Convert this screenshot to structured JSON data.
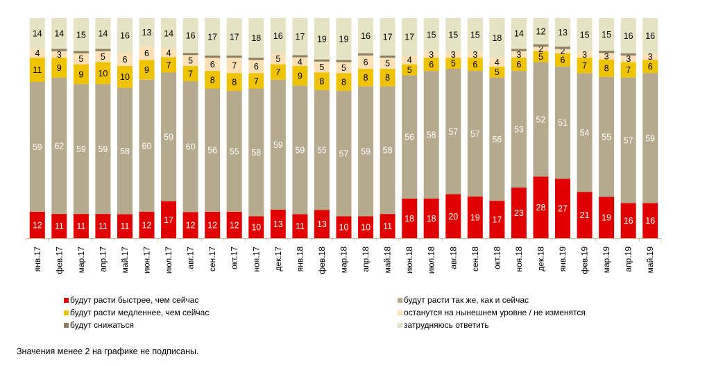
{
  "chart_data": {
    "type": "bar",
    "stacked": true,
    "orientation": "vertical",
    "percent_stack": true,
    "title": "",
    "xlabel": "",
    "ylabel": "",
    "ylim": [
      0,
      100
    ],
    "grid": false,
    "legend_position": "bottom",
    "categories": [
      "янв.17",
      "фев.17",
      "мар.17",
      "апр.17",
      "май.17",
      "июн.17",
      "июл.17",
      "авг.17",
      "сен.17",
      "окт.17",
      "ноя.17",
      "дек.17",
      "янв.18",
      "фев.18",
      "мар.18",
      "апр.18",
      "май.18",
      "июн.18",
      "июл.18",
      "авг.18",
      "сен.18",
      "окт.18",
      "ноя.18",
      "дек.18",
      "янв.19",
      "фев.19",
      "мар.19",
      "апр.19",
      "май.19"
    ],
    "series": [
      {
        "name": "будут расти быстрее, чем сейчас",
        "color": "#e00000",
        "label_color": "#ffffff",
        "values": [
          12,
          11,
          11,
          11,
          11,
          12,
          17,
          12,
          12,
          12,
          10,
          13,
          11,
          13,
          10,
          10,
          11,
          18,
          18,
          20,
          19,
          17,
          23,
          28,
          27,
          21,
          19,
          16,
          16
        ]
      },
      {
        "name": "будут расти так же, как и сейчас",
        "color": "#b5aa8e",
        "label_color": "#ffffff",
        "values": [
          59,
          62,
          59,
          59,
          58,
          60,
          59,
          60,
          56,
          55,
          58,
          59,
          59,
          55,
          57,
          59,
          58,
          56,
          58,
          57,
          57,
          56,
          53,
          52,
          51,
          54,
          55,
          57,
          59
        ]
      },
      {
        "name": "будут расти медленнее, чем сейчас",
        "color": "#f0c300",
        "label_color": "#000000",
        "values": [
          11,
          9,
          9,
          10,
          10,
          9,
          7,
          7,
          8,
          8,
          7,
          7,
          9,
          8,
          8,
          8,
          8,
          5,
          6,
          5,
          6,
          5,
          6,
          5,
          6,
          7,
          8,
          7,
          6
        ]
      },
      {
        "name": "останутся на нынешнем уровне / не изменятся",
        "color": "#fde0b5",
        "label_color": "#000000",
        "values": [
          4,
          3,
          5,
          5,
          6,
          6,
          4,
          5,
          6,
          7,
          6,
          5,
          4,
          5,
          5,
          6,
          5,
          4,
          3,
          3,
          3,
          4,
          3,
          2,
          2,
          3,
          3,
          3,
          3
        ]
      },
      {
        "name": "будут снижаться",
        "color": "#8c8060",
        "label_color": "#000000",
        "values": [
          0,
          1,
          1,
          1,
          0,
          0,
          0,
          1,
          1,
          1,
          1,
          0,
          1,
          1,
          1,
          1,
          1,
          0,
          0,
          0,
          0,
          0,
          1,
          1,
          1,
          0,
          1,
          1,
          0
        ],
        "labeled": false
      },
      {
        "name": "затрудняюсь ответить",
        "color": "#e6e2c4",
        "label_color": "#000000",
        "values": [
          14,
          14,
          15,
          14,
          16,
          13,
          14,
          16,
          17,
          17,
          18,
          16,
          17,
          19,
          19,
          16,
          17,
          17,
          15,
          15,
          15,
          18,
          14,
          12,
          13,
          15,
          15,
          16,
          16
        ]
      }
    ],
    "label_threshold": 2,
    "axis_color": "#c8c09a"
  },
  "legend": {
    "left": [
      {
        "label": "будут расти быстрее, чем сейчас",
        "color": "#e00000"
      },
      {
        "label": "будут расти медленнее, чем сейчас",
        "color": "#f0c300"
      },
      {
        "label": "будут снижаться",
        "color": "#8c8060"
      }
    ],
    "right": [
      {
        "label": "будут расти так же, как и сейчас",
        "color": "#b5aa8e"
      },
      {
        "label": "останутся на нынешнем уровне / не изменятся",
        "color": "#fde0b5"
      },
      {
        "label": "затрудняюсь ответить",
        "color": "#e6e2c4"
      }
    ]
  },
  "footnote": "Значения менее 2 на графике не подписаны."
}
